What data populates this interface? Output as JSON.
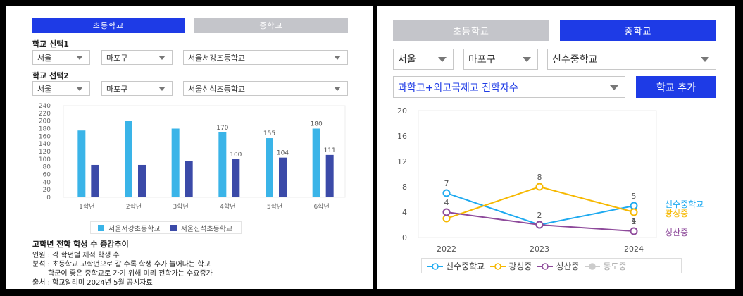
{
  "left": {
    "tabs": [
      {
        "label": "초등학교",
        "active": true
      },
      {
        "label": "중학교",
        "active": false
      }
    ],
    "select1_label": "학교 선택1",
    "select1": {
      "city": "서울",
      "district": "마포구",
      "school": "서울서강초등학교"
    },
    "select2_label": "학교 선택2",
    "select2": {
      "city": "서울",
      "district": "마포구",
      "school": "서울신석초등학교"
    },
    "legend": [
      "서울서강초등학교",
      "서울신석초등학교"
    ],
    "notes": {
      "title": "고학년 전학 학생 수 증감추이",
      "line1": "인원 : 각 학년별 제적 학생 수",
      "line2": "분석 : 초등학교 고학년으로 갈 수록 학생 수가 늘어나는 학교",
      "line3": "학군이 좋은 중학교로 가기 위해 미리 전학가는 수요증가",
      "line4": "출처 : 학교알리미 2024년 5월 공시자료"
    }
  },
  "right": {
    "tabs": [
      {
        "label": "초등학교",
        "active": false
      },
      {
        "label": "중학교",
        "active": true
      }
    ],
    "select": {
      "city": "서울",
      "district": "마포구",
      "school": "신수중학교"
    },
    "metric": "과학고+외고국제고 진학자수",
    "add_button": "학교 추가",
    "legend": [
      {
        "name": "신수중학교",
        "color": "#1eaaf0"
      },
      {
        "name": "광성중",
        "color": "#f6b800"
      },
      {
        "name": "성산중",
        "color": "#8e4a9b"
      },
      {
        "name": "동도중",
        "color": "#bbbbbb"
      }
    ]
  },
  "chart_data": [
    {
      "type": "bar",
      "categories": [
        "1학년",
        "2학년",
        "3학년",
        "4학년",
        "5학년",
        "6학년"
      ],
      "series": [
        {
          "name": "서울서강초등학교",
          "color": "#3ab4e8",
          "values": [
            175,
            200,
            180,
            170,
            155,
            180
          ],
          "labels": [
            "",
            "",
            "",
            "170",
            "155",
            "180"
          ]
        },
        {
          "name": "서울신석초등학교",
          "color": "#3b4aa8",
          "values": [
            85,
            85,
            96,
            100,
            104,
            111
          ],
          "labels": [
            "",
            "",
            "",
            "100",
            "104",
            "111"
          ]
        }
      ],
      "ylim": [
        0,
        240
      ],
      "yticks": [
        "0",
        "20",
        "40",
        "60",
        "80",
        "100",
        "120",
        "140",
        "160",
        "180",
        "200",
        "220",
        "240"
      ],
      "grid": false,
      "legend_position": "bottom"
    },
    {
      "type": "line",
      "x": [
        "2022",
        "2023",
        "2024"
      ],
      "series": [
        {
          "name": "신수중학교",
          "color": "#1eaaf0",
          "values": [
            7,
            2,
            5
          ],
          "labels": [
            "7",
            "2",
            "5"
          ]
        },
        {
          "name": "광성중",
          "color": "#f6b800",
          "values": [
            3,
            8,
            4
          ],
          "labels": [
            "",
            "8",
            "4"
          ]
        },
        {
          "name": "성산중",
          "color": "#8e4a9b",
          "values": [
            4,
            2,
            1
          ],
          "labels": [
            "4",
            "",
            "1"
          ]
        }
      ],
      "ylim": [
        0,
        20
      ],
      "yticks": [
        "0",
        "4",
        "8",
        "12",
        "16",
        "20"
      ],
      "end_labels": [
        "신수중학교",
        "광성중",
        "성산중"
      ],
      "grid": false,
      "legend_position": "bottom"
    }
  ]
}
